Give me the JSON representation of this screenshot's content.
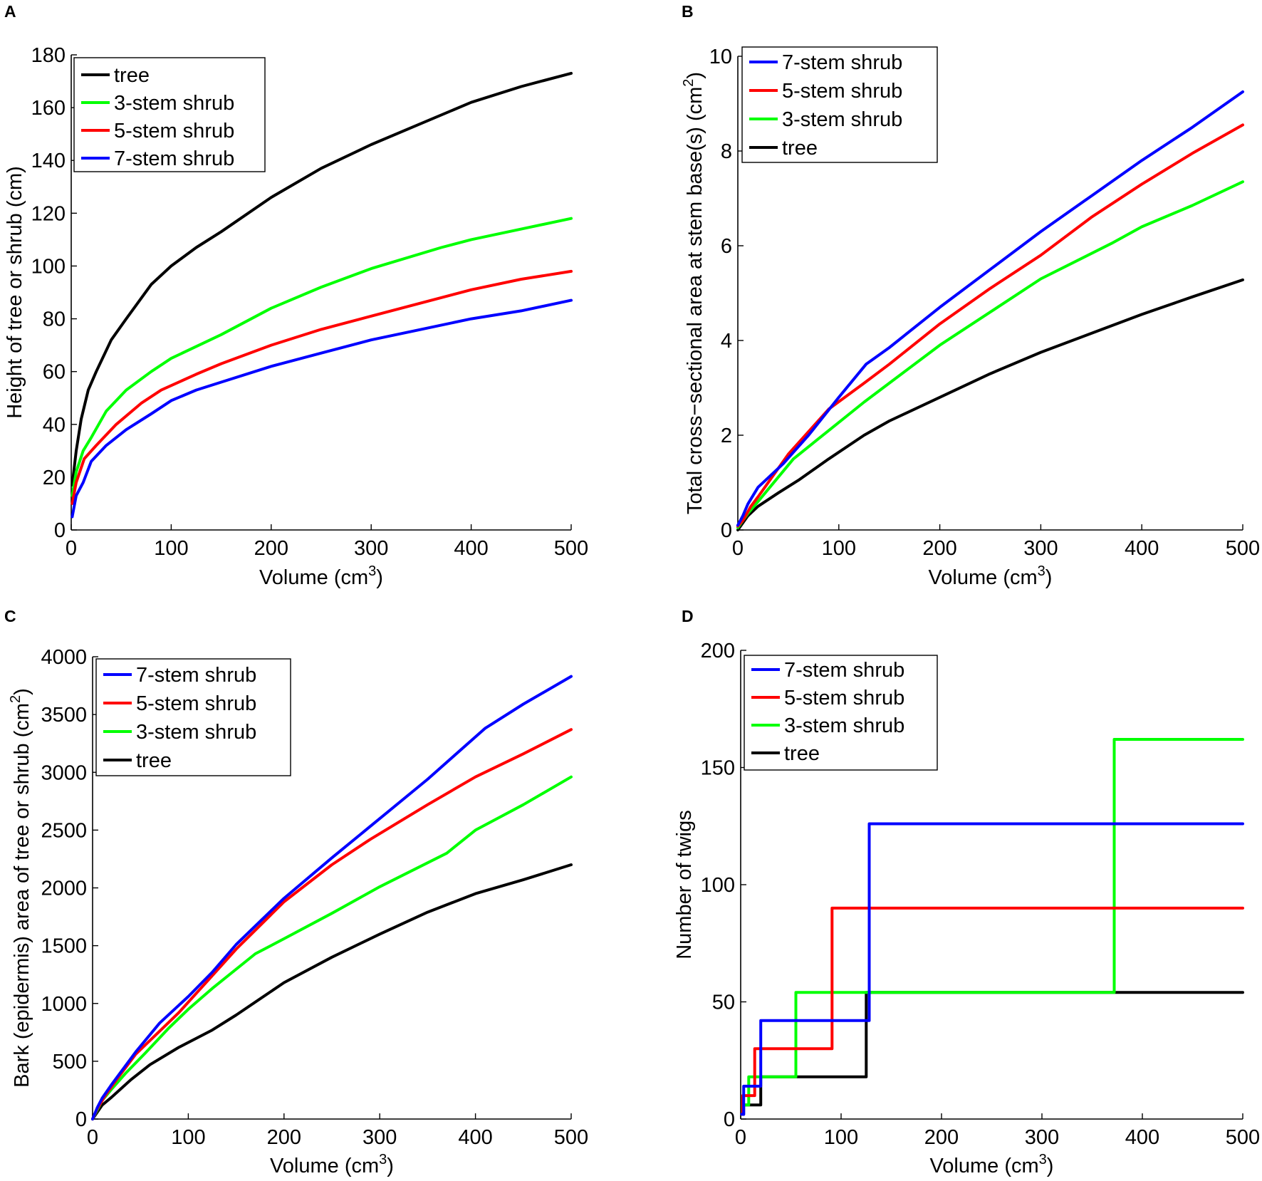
{
  "chart_data": [
    {
      "panel": "A",
      "type": "line",
      "xlabel": "Volume (cm",
      "xlabel_sup": "3",
      "xlabel_suffix": ")",
      "ylabel": "Height of tree or shrub (cm)",
      "xlim": [
        0,
        500
      ],
      "ylim": [
        0,
        180
      ],
      "xticks": [
        0,
        100,
        200,
        300,
        400,
        500
      ],
      "yticks": [
        0,
        20,
        40,
        60,
        80,
        100,
        120,
        140,
        160,
        180
      ],
      "legend_position": "top-left",
      "series": [
        {
          "name": "tree",
          "color": "#000000",
          "x": [
            1,
            5,
            10,
            17,
            25,
            40,
            55,
            80,
            100,
            125,
            150,
            200,
            250,
            300,
            350,
            400,
            450,
            500
          ],
          "y": [
            17,
            30,
            42,
            53,
            60,
            72,
            80,
            93,
            100,
            107,
            113,
            126,
            137,
            146,
            154,
            162,
            168,
            173
          ]
        },
        {
          "name": "3-stem shrub",
          "color": "#00ff00",
          "x": [
            1,
            5,
            12,
            20,
            35,
            55,
            80,
            100,
            150,
            200,
            250,
            300,
            370,
            400,
            450,
            500
          ],
          "y": [
            13,
            22,
            30,
            35,
            45,
            53,
            60,
            65,
            74,
            84,
            92,
            99,
            107,
            110,
            114,
            118
          ]
        },
        {
          "name": "5-stem shrub",
          "color": "#ff0000",
          "x": [
            1,
            5,
            13,
            25,
            45,
            70,
            90,
            125,
            150,
            200,
            250,
            300,
            350,
            400,
            450,
            500
          ],
          "y": [
            10,
            18,
            27,
            32,
            40,
            48,
            53,
            59,
            63,
            70,
            76,
            81,
            86,
            91,
            95,
            98
          ]
        },
        {
          "name": "7-stem shrub",
          "color": "#0000ff",
          "x": [
            1,
            5,
            12,
            20,
            35,
            55,
            80,
            100,
            125,
            150,
            200,
            250,
            300,
            350,
            400,
            450,
            500
          ],
          "y": [
            5,
            13,
            18,
            26,
            32,
            38,
            44,
            49,
            53,
            56,
            62,
            67,
            72,
            76,
            80,
            83,
            87
          ]
        }
      ],
      "legend_order": [
        0,
        1,
        2,
        3
      ]
    },
    {
      "panel": "B",
      "type": "line",
      "xlabel": "Volume (cm",
      "xlabel_sup": "3",
      "xlabel_suffix": ")",
      "ylabel": "Total cross−sectional area at stem base(s) (cm",
      "ylabel_sup": "2",
      "ylabel_suffix": ")",
      "xlim": [
        0,
        500
      ],
      "ylim": [
        0,
        10
      ],
      "xticks": [
        0,
        100,
        200,
        300,
        400,
        500
      ],
      "yticks": [
        0,
        2,
        4,
        6,
        8,
        10
      ],
      "legend_position": "top-left",
      "series": [
        {
          "name": "tree",
          "color": "#000000",
          "x": [
            0,
            5,
            10,
            20,
            40,
            60,
            90,
            125,
            150,
            200,
            250,
            300,
            350,
            400,
            450,
            500
          ],
          "y": [
            0,
            0.15,
            0.3,
            0.5,
            0.78,
            1.05,
            1.5,
            2.0,
            2.3,
            2.8,
            3.3,
            3.75,
            4.15,
            4.55,
            4.92,
            5.28
          ]
        },
        {
          "name": "3-stem shrub",
          "color": "#00ff00",
          "x": [
            0,
            5,
            10,
            20,
            55,
            90,
            125,
            150,
            200,
            250,
            300,
            370,
            400,
            450,
            500
          ],
          "y": [
            0.05,
            0.2,
            0.35,
            0.6,
            1.5,
            2.1,
            2.7,
            3.1,
            3.9,
            4.6,
            5.3,
            6.05,
            6.4,
            6.85,
            7.35
          ]
        },
        {
          "name": "5-stem shrub",
          "color": "#ff0000",
          "x": [
            0,
            5,
            13,
            20,
            50,
            90,
            125,
            150,
            200,
            250,
            300,
            350,
            400,
            450,
            500
          ],
          "y": [
            0.08,
            0.2,
            0.5,
            0.7,
            1.6,
            2.55,
            3.1,
            3.5,
            4.35,
            5.1,
            5.8,
            6.6,
            7.3,
            7.95,
            8.55
          ]
        },
        {
          "name": "7-stem shrub",
          "color": "#0000ff",
          "x": [
            0,
            5,
            10,
            20,
            45,
            70,
            100,
            127,
            150,
            200,
            250,
            300,
            350,
            400,
            450,
            500
          ],
          "y": [
            0.1,
            0.3,
            0.55,
            0.9,
            1.4,
            2.0,
            2.8,
            3.5,
            3.85,
            4.7,
            5.5,
            6.3,
            7.05,
            7.8,
            8.5,
            9.25
          ]
        }
      ],
      "legend_order": [
        3,
        2,
        1,
        0
      ]
    },
    {
      "panel": "C",
      "type": "line",
      "xlabel": "Volume (cm",
      "xlabel_sup": "3",
      "xlabel_suffix": ")",
      "ylabel": "Bark (epidermis) area of tree or shrub (cm",
      "ylabel_sup": "2",
      "ylabel_suffix": ")",
      "xlim": [
        0,
        500
      ],
      "ylim": [
        0,
        4000
      ],
      "xticks": [
        0,
        100,
        200,
        300,
        400,
        500
      ],
      "yticks": [
        0,
        500,
        1000,
        1500,
        2000,
        2500,
        3000,
        3500,
        4000
      ],
      "legend_position": "top-left",
      "series": [
        {
          "name": "tree",
          "color": "#000000",
          "x": [
            0,
            5,
            10,
            20,
            40,
            60,
            90,
            125,
            150,
            200,
            250,
            300,
            350,
            400,
            450,
            500
          ],
          "y": [
            0,
            60,
            120,
            190,
            340,
            470,
            620,
            770,
            900,
            1180,
            1400,
            1600,
            1790,
            1950,
            2070,
            2200
          ]
        },
        {
          "name": "3-stem shrub",
          "color": "#00ff00",
          "x": [
            0,
            5,
            10,
            20,
            35,
            55,
            80,
            100,
            125,
            170,
            200,
            250,
            300,
            370,
            400,
            450,
            500
          ],
          "y": [
            0,
            80,
            160,
            260,
            400,
            570,
            790,
            950,
            1130,
            1430,
            1560,
            1780,
            2010,
            2300,
            2500,
            2720,
            2960
          ]
        },
        {
          "name": "5-stem shrub",
          "color": "#ff0000",
          "x": [
            0,
            5,
            13,
            25,
            45,
            70,
            90,
            125,
            150,
            200,
            250,
            290,
            350,
            400,
            450,
            500
          ],
          "y": [
            0,
            90,
            200,
            340,
            560,
            760,
            920,
            1240,
            1470,
            1880,
            2200,
            2420,
            2720,
            2960,
            3160,
            3370
          ]
        },
        {
          "name": "7-stem shrub",
          "color": "#0000ff",
          "x": [
            0,
            5,
            10,
            20,
            45,
            70,
            100,
            125,
            150,
            200,
            250,
            300,
            350,
            410,
            450,
            500
          ],
          "y": [
            0,
            100,
            180,
            300,
            580,
            830,
            1060,
            1270,
            1510,
            1910,
            2260,
            2600,
            2940,
            3380,
            3590,
            3830
          ]
        }
      ],
      "legend_order": [
        3,
        2,
        1,
        0
      ]
    },
    {
      "panel": "D",
      "type": "line",
      "xlabel": "Volume (cm",
      "xlabel_sup": "3",
      "xlabel_suffix": ")",
      "ylabel": "Number of twigs",
      "xlim": [
        0,
        500
      ],
      "ylim": [
        0,
        200
      ],
      "xticks": [
        0,
        100,
        200,
        300,
        400,
        500
      ],
      "yticks": [
        0,
        50,
        100,
        150,
        200
      ],
      "legend_position": "top-left",
      "series": [
        {
          "name": "tree",
          "color": "#000000",
          "x": [
            1,
            3,
            3,
            20,
            20,
            125,
            125,
            500
          ],
          "y": [
            2,
            2,
            6,
            6,
            18,
            18,
            54,
            54
          ]
        },
        {
          "name": "3-stem shrub",
          "color": "#00ff00",
          "x": [
            1,
            2,
            2,
            8,
            8,
            55,
            55,
            372,
            372,
            500
          ],
          "y": [
            2,
            2,
            6,
            6,
            18,
            18,
            54,
            54,
            162,
            162
          ]
        },
        {
          "name": "5-stem shrub",
          "color": "#ff0000",
          "x": [
            1,
            2,
            2,
            14,
            14,
            91,
            91,
            500
          ],
          "y": [
            2,
            2,
            10,
            10,
            30,
            30,
            90,
            90
          ]
        },
        {
          "name": "7-stem shrub",
          "color": "#0000ff",
          "x": [
            1,
            3,
            3,
            20,
            20,
            128,
            128,
            500
          ],
          "y": [
            2,
            2,
            14,
            14,
            42,
            42,
            126,
            126
          ]
        }
      ],
      "legend_order": [
        3,
        2,
        1,
        0
      ]
    }
  ]
}
